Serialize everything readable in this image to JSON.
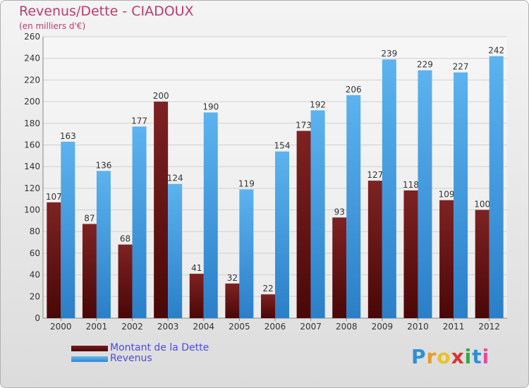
{
  "header": {
    "title": "Revenus/Dette - CIADOUX",
    "subtitle": "(en milliers d'€)"
  },
  "brand": {
    "letters": [
      "P",
      "r",
      "o",
      "x",
      "i",
      "t",
      "i"
    ],
    "letter_colors": [
      "#2f8fd8",
      "#e89a2a",
      "#e8c22a",
      "#d8342f",
      "#35a845",
      "#2f8fd8",
      "#e84a9a"
    ]
  },
  "colors": {
    "debt": "#7a1b1b",
    "revenue": "#4aa3e8",
    "grid": "#d0d0d0",
    "axis_text": "#333333"
  },
  "chart_data": {
    "type": "bar",
    "title": "Revenus/Dette - CIADOUX",
    "ylabel": "(en milliers d'€)",
    "xlabel": "",
    "categories": [
      "2000",
      "2001",
      "2002",
      "2003",
      "2004",
      "2005",
      "2006",
      "2007",
      "2008",
      "2009",
      "2010",
      "2011",
      "2012"
    ],
    "series": [
      {
        "name": "Montant de la Dette",
        "values": [
          107,
          87,
          68,
          200,
          41,
          32,
          22,
          173,
          93,
          127,
          118,
          109,
          100
        ]
      },
      {
        "name": "Revenus",
        "values": [
          163,
          136,
          177,
          124,
          190,
          119,
          154,
          192,
          206,
          239,
          229,
          227,
          242
        ]
      }
    ],
    "ylim": [
      0,
      260
    ],
    "yticks": [
      0,
      20,
      40,
      60,
      80,
      100,
      120,
      140,
      160,
      180,
      200,
      220,
      240,
      260
    ],
    "grid": true,
    "legend": "bottom-left"
  }
}
